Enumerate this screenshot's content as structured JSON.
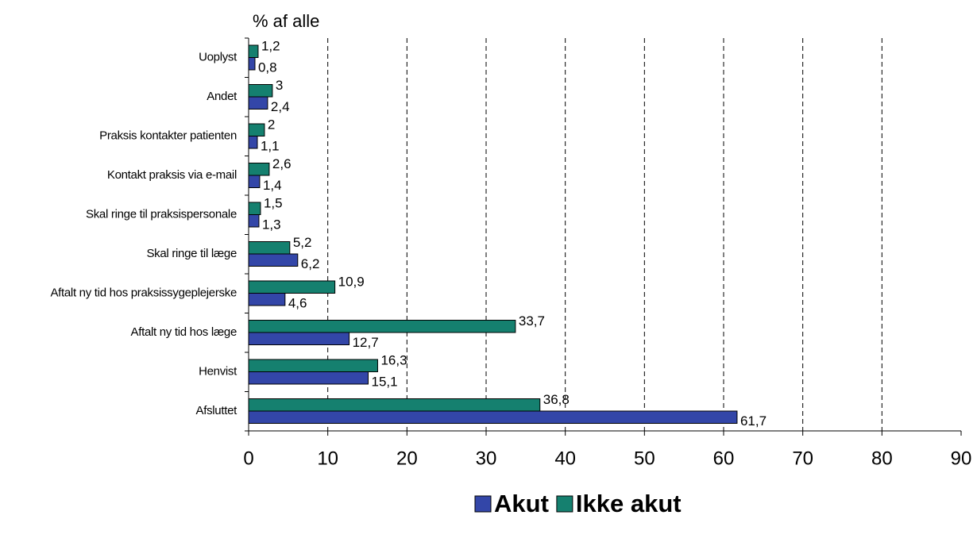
{
  "chart_data": {
    "type": "hbar",
    "axis_title": "% af alle",
    "categories": [
      "Uoplyst",
      "Andet",
      "Praksis kontakter patienten",
      "Kontakt praksis via e-mail",
      "Skal ringe til praksispersonale",
      "Skal ringe til læge",
      "Aftalt ny tid hos praksissygeplejerske",
      "Aftalt ny tid hos læge",
      "Henvist",
      "Afsluttet"
    ],
    "series": [
      {
        "name": "Akut",
        "color": "#3346a8",
        "values": [
          0.8,
          2.4,
          1.1,
          1.4,
          1.3,
          6.2,
          4.6,
          12.7,
          15.1,
          61.7
        ],
        "value_labels": [
          "0,8",
          "2,4",
          "1,1",
          "1,4",
          "1,3",
          "6,2",
          "4,6",
          "12,7",
          "15,1",
          "61,7"
        ]
      },
      {
        "name": "Ikke akut",
        "color": "#15806f",
        "values": [
          1.2,
          3,
          2,
          2.6,
          1.5,
          5.2,
          10.9,
          33.7,
          16.3,
          36.8
        ],
        "value_labels": [
          "1,2",
          "3",
          "2",
          "2,6",
          "1,5",
          "5,2",
          "10,9",
          "33,7",
          "16,3",
          "36,8"
        ]
      }
    ],
    "xlim": [
      0,
      90
    ],
    "xticks": [
      0,
      10,
      20,
      30,
      40,
      50,
      60,
      70,
      80,
      90
    ],
    "grid": true
  }
}
